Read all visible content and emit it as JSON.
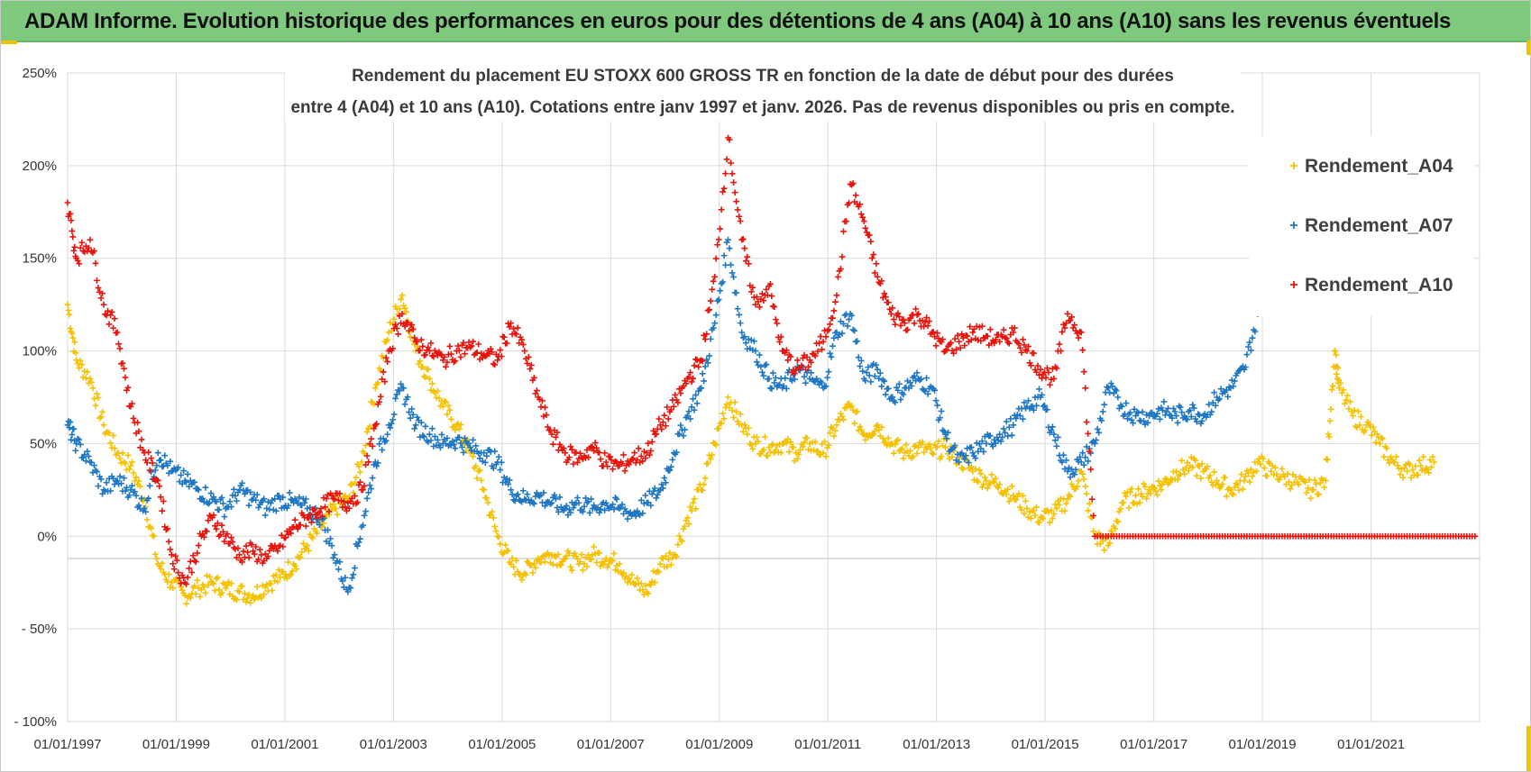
{
  "banner": {
    "title": "ADAM Informe. Evolution historique des performances en euros pour des détentions de 4 ans (A04) à 10 ans (A10) sans les revenus éventuels",
    "color": "#7fc97f"
  },
  "chart_data": {
    "type": "scatter",
    "title": "Rendement du placement EU STOXX 600 GROSS TR en fonction de la date de début pour des durées",
    "subtitle": "entre 4 (A04) et 10 ans (A10).  Cotations entre janv 1997 et janv. 2026. Pas de revenus disponibles ou pris en compte.",
    "xlabel": "",
    "ylabel": "",
    "x_type": "date",
    "xlim": [
      "1997-01-01",
      "2023-01-01"
    ],
    "ylim": [
      -100,
      250
    ],
    "y_unit": "%",
    "y_ticks": [
      -100,
      -50,
      0,
      50,
      100,
      150,
      200,
      250
    ],
    "y_tick_labels": [
      "- 100%",
      "- 50%",
      "0%",
      "50%",
      "100%",
      "150%",
      "200%",
      "250%"
    ],
    "x_tick_labels": [
      "01/01/1997",
      "01/01/1999",
      "01/01/2001",
      "01/01/2003",
      "01/01/2005",
      "01/01/2007",
      "01/01/2009",
      "01/01/2011",
      "01/01/2013",
      "01/01/2015",
      "01/01/2017",
      "01/01/2019",
      "01/01/2021"
    ],
    "grid": true,
    "legend_position": "top-right",
    "marker": "+",
    "series": [
      {
        "name": "Rendement_A04",
        "color": "#f5c000",
        "points": [
          [
            "1997-01",
            125
          ],
          [
            "1997-03",
            95
          ],
          [
            "1997-06",
            85
          ],
          [
            "1997-09",
            60
          ],
          [
            "1997-12",
            45
          ],
          [
            "1998-03",
            38
          ],
          [
            "1998-06",
            20
          ],
          [
            "1998-09",
            -15
          ],
          [
            "1998-12",
            -25
          ],
          [
            "1999-03",
            -32
          ],
          [
            "1999-06",
            -28
          ],
          [
            "1999-09",
            -25
          ],
          [
            "1999-12",
            -28
          ],
          [
            "2000-03",
            -30
          ],
          [
            "2000-06",
            -32
          ],
          [
            "2000-09",
            -26
          ],
          [
            "2000-12",
            -22
          ],
          [
            "2001-03",
            -15
          ],
          [
            "2001-06",
            -5
          ],
          [
            "2001-09",
            5
          ],
          [
            "2001-12",
            15
          ],
          [
            "2002-03",
            20
          ],
          [
            "2002-06",
            40
          ],
          [
            "2002-09",
            80
          ],
          [
            "2002-12",
            110
          ],
          [
            "2003-03",
            130
          ],
          [
            "2003-06",
            100
          ],
          [
            "2003-09",
            85
          ],
          [
            "2003-12",
            70
          ],
          [
            "2004-03",
            60
          ],
          [
            "2004-06",
            45
          ],
          [
            "2004-09",
            25
          ],
          [
            "2004-12",
            0
          ],
          [
            "2005-03",
            -15
          ],
          [
            "2005-06",
            -20
          ],
          [
            "2005-09",
            -12
          ],
          [
            "2005-12",
            -10
          ],
          [
            "2006-03",
            -12
          ],
          [
            "2006-06",
            -15
          ],
          [
            "2006-09",
            -10
          ],
          [
            "2006-12",
            -12
          ],
          [
            "2007-03",
            -15
          ],
          [
            "2007-06",
            -25
          ],
          [
            "2007-09",
            -30
          ],
          [
            "2007-12",
            -15
          ],
          [
            "2008-03",
            -10
          ],
          [
            "2008-06",
            10
          ],
          [
            "2008-09",
            25
          ],
          [
            "2008-12",
            50
          ],
          [
            "2009-03",
            75
          ],
          [
            "2009-06",
            60
          ],
          [
            "2009-09",
            50
          ],
          [
            "2009-12",
            48
          ],
          [
            "2010-03",
            50
          ],
          [
            "2010-06",
            45
          ],
          [
            "2010-09",
            50
          ],
          [
            "2010-12",
            45
          ],
          [
            "2011-03",
            60
          ],
          [
            "2011-06",
            70
          ],
          [
            "2011-09",
            55
          ],
          [
            "2011-12",
            60
          ],
          [
            "2012-03",
            50
          ],
          [
            "2012-06",
            45
          ],
          [
            "2012-09",
            48
          ],
          [
            "2012-12",
            45
          ],
          [
            "2013-03",
            48
          ],
          [
            "2013-06",
            42
          ],
          [
            "2013-09",
            35
          ],
          [
            "2013-12",
            30
          ],
          [
            "2014-03",
            28
          ],
          [
            "2014-06",
            22
          ],
          [
            "2014-09",
            15
          ],
          [
            "2014-12",
            10
          ],
          [
            "2015-03",
            12
          ],
          [
            "2015-06",
            20
          ],
          [
            "2015-09",
            35
          ],
          [
            "2015-12",
            0
          ],
          [
            "2016-03",
            -5
          ],
          [
            "2016-06",
            18
          ],
          [
            "2016-09",
            22
          ],
          [
            "2016-12",
            25
          ],
          [
            "2017-03",
            28
          ],
          [
            "2017-06",
            35
          ],
          [
            "2017-09",
            38
          ],
          [
            "2017-12",
            35
          ],
          [
            "2018-03",
            30
          ],
          [
            "2018-06",
            25
          ],
          [
            "2018-09",
            30
          ],
          [
            "2018-12",
            40
          ],
          [
            "2019-03",
            35
          ],
          [
            "2019-06",
            32
          ],
          [
            "2019-09",
            28
          ],
          [
            "2019-12",
            25
          ],
          [
            "2020-03",
            30
          ],
          [
            "2020-05",
            100
          ],
          [
            "2020-06",
            80
          ],
          [
            "2020-09",
            65
          ],
          [
            "2020-12",
            60
          ],
          [
            "2021-03",
            50
          ],
          [
            "2021-06",
            40
          ],
          [
            "2021-09",
            35
          ],
          [
            "2021-12",
            38
          ],
          [
            "2022-03",
            40
          ]
        ]
      },
      {
        "name": "Rendement_A07",
        "color": "#1f77c4",
        "points": [
          [
            "1997-01",
            60
          ],
          [
            "1997-03",
            50
          ],
          [
            "1997-06",
            40
          ],
          [
            "1997-09",
            25
          ],
          [
            "1997-12",
            30
          ],
          [
            "1998-03",
            25
          ],
          [
            "1998-06",
            15
          ],
          [
            "1998-09",
            45
          ],
          [
            "1998-12",
            35
          ],
          [
            "1999-03",
            30
          ],
          [
            "1999-06",
            25
          ],
          [
            "1999-09",
            20
          ],
          [
            "1999-12",
            15
          ],
          [
            "2000-03",
            25
          ],
          [
            "2000-06",
            20
          ],
          [
            "2000-09",
            15
          ],
          [
            "2000-12",
            20
          ],
          [
            "2001-03",
            18
          ],
          [
            "2001-06",
            15
          ],
          [
            "2001-09",
            10
          ],
          [
            "2001-12",
            -10
          ],
          [
            "2002-03",
            -30
          ],
          [
            "2002-06",
            5
          ],
          [
            "2002-09",
            40
          ],
          [
            "2002-12",
            60
          ],
          [
            "2003-03",
            80
          ],
          [
            "2003-06",
            60
          ],
          [
            "2003-09",
            55
          ],
          [
            "2003-12",
            50
          ],
          [
            "2004-03",
            52
          ],
          [
            "2004-06",
            48
          ],
          [
            "2004-09",
            45
          ],
          [
            "2004-12",
            40
          ],
          [
            "2005-03",
            25
          ],
          [
            "2005-06",
            20
          ],
          [
            "2005-09",
            22
          ],
          [
            "2005-12",
            18
          ],
          [
            "2006-03",
            15
          ],
          [
            "2006-06",
            18
          ],
          [
            "2006-09",
            15
          ],
          [
            "2006-12",
            18
          ],
          [
            "2007-03",
            15
          ],
          [
            "2007-06",
            12
          ],
          [
            "2007-09",
            18
          ],
          [
            "2007-12",
            25
          ],
          [
            "2008-03",
            45
          ],
          [
            "2008-06",
            65
          ],
          [
            "2008-09",
            80
          ],
          [
            "2008-12",
            115
          ],
          [
            "2009-03",
            160
          ],
          [
            "2009-06",
            110
          ],
          [
            "2009-09",
            100
          ],
          [
            "2009-12",
            85
          ],
          [
            "2010-03",
            80
          ],
          [
            "2010-06",
            90
          ],
          [
            "2010-09",
            85
          ],
          [
            "2010-12",
            80
          ],
          [
            "2011-03",
            110
          ],
          [
            "2011-06",
            120
          ],
          [
            "2011-09",
            85
          ],
          [
            "2011-12",
            90
          ],
          [
            "2012-03",
            75
          ],
          [
            "2012-06",
            80
          ],
          [
            "2012-09",
            85
          ],
          [
            "2012-12",
            80
          ],
          [
            "2013-03",
            55
          ],
          [
            "2013-06",
            40
          ],
          [
            "2013-09",
            45
          ],
          [
            "2013-12",
            50
          ],
          [
            "2014-03",
            55
          ],
          [
            "2014-06",
            60
          ],
          [
            "2014-09",
            70
          ],
          [
            "2014-12",
            75
          ],
          [
            "2015-03",
            55
          ],
          [
            "2015-06",
            35
          ],
          [
            "2015-09",
            40
          ],
          [
            "2015-12",
            50
          ],
          [
            "2016-03",
            80
          ],
          [
            "2016-06",
            70
          ],
          [
            "2016-09",
            65
          ],
          [
            "2016-12",
            65
          ],
          [
            "2017-03",
            68
          ],
          [
            "2017-06",
            65
          ],
          [
            "2017-09",
            68
          ],
          [
            "2017-12",
            65
          ],
          [
            "2018-03",
            75
          ],
          [
            "2018-06",
            80
          ],
          [
            "2018-09",
            90
          ],
          [
            "2018-12",
            120
          ]
        ]
      },
      {
        "name": "Rendement_A10",
        "color": "#e8140c",
        "points": [
          [
            "1997-01",
            180
          ],
          [
            "1997-03",
            150
          ],
          [
            "1997-06",
            160
          ],
          [
            "1997-09",
            125
          ],
          [
            "1997-12",
            110
          ],
          [
            "1998-03",
            70
          ],
          [
            "1998-06",
            45
          ],
          [
            "1998-09",
            30
          ],
          [
            "1998-12",
            -10
          ],
          [
            "1999-03",
            -25
          ],
          [
            "1999-06",
            -5
          ],
          [
            "1999-09",
            10
          ],
          [
            "1999-12",
            0
          ],
          [
            "2000-03",
            -10
          ],
          [
            "2000-06",
            -8
          ],
          [
            "2000-09",
            -12
          ],
          [
            "2000-12",
            -5
          ],
          [
            "2001-03",
            5
          ],
          [
            "2001-06",
            10
          ],
          [
            "2001-09",
            15
          ],
          [
            "2001-12",
            20
          ],
          [
            "2002-03",
            18
          ],
          [
            "2002-06",
            25
          ],
          [
            "2002-09",
            60
          ],
          [
            "2002-12",
            100
          ],
          [
            "2003-03",
            120
          ],
          [
            "2003-06",
            105
          ],
          [
            "2003-09",
            100
          ],
          [
            "2003-12",
            95
          ],
          [
            "2004-03",
            100
          ],
          [
            "2004-06",
            102
          ],
          [
            "2004-09",
            98
          ],
          [
            "2004-12",
            95
          ],
          [
            "2005-03",
            115
          ],
          [
            "2005-06",
            100
          ],
          [
            "2005-09",
            75
          ],
          [
            "2005-12",
            55
          ],
          [
            "2006-03",
            45
          ],
          [
            "2006-06",
            42
          ],
          [
            "2006-09",
            48
          ],
          [
            "2006-12",
            40
          ],
          [
            "2007-03",
            38
          ],
          [
            "2007-06",
            42
          ],
          [
            "2007-09",
            45
          ],
          [
            "2007-12",
            60
          ],
          [
            "2008-03",
            70
          ],
          [
            "2008-06",
            85
          ],
          [
            "2008-09",
            95
          ],
          [
            "2008-12",
            140
          ],
          [
            "2009-03",
            215
          ],
          [
            "2009-06",
            160
          ],
          [
            "2009-09",
            125
          ],
          [
            "2009-12",
            135
          ],
          [
            "2010-03",
            100
          ],
          [
            "2010-06",
            90
          ],
          [
            "2010-09",
            95
          ],
          [
            "2010-12",
            105
          ],
          [
            "2011-03",
            130
          ],
          [
            "2011-06",
            190
          ],
          [
            "2011-09",
            170
          ],
          [
            "2011-12",
            140
          ],
          [
            "2012-03",
            120
          ],
          [
            "2012-06",
            115
          ],
          [
            "2012-09",
            120
          ],
          [
            "2012-12",
            110
          ],
          [
            "2013-03",
            100
          ],
          [
            "2013-06",
            105
          ],
          [
            "2013-09",
            110
          ],
          [
            "2013-12",
            108
          ],
          [
            "2014-03",
            105
          ],
          [
            "2014-06",
            110
          ],
          [
            "2014-09",
            100
          ],
          [
            "2014-12",
            90
          ],
          [
            "2015-03",
            85
          ],
          [
            "2015-06",
            120
          ],
          [
            "2015-09",
            110
          ],
          [
            "2015-12",
            0
          ],
          [
            "2016-06",
            0
          ],
          [
            "2016-12",
            0
          ],
          [
            "2017-06",
            0
          ],
          [
            "2017-12",
            0
          ],
          [
            "2018-06",
            0
          ],
          [
            "2018-12",
            0
          ],
          [
            "2019-06",
            0
          ],
          [
            "2019-12",
            0
          ],
          [
            "2020-06",
            0
          ],
          [
            "2020-12",
            0
          ],
          [
            "2021-06",
            0
          ],
          [
            "2021-12",
            0
          ],
          [
            "2022-06",
            0
          ],
          [
            "2022-12",
            0
          ]
        ]
      }
    ]
  }
}
